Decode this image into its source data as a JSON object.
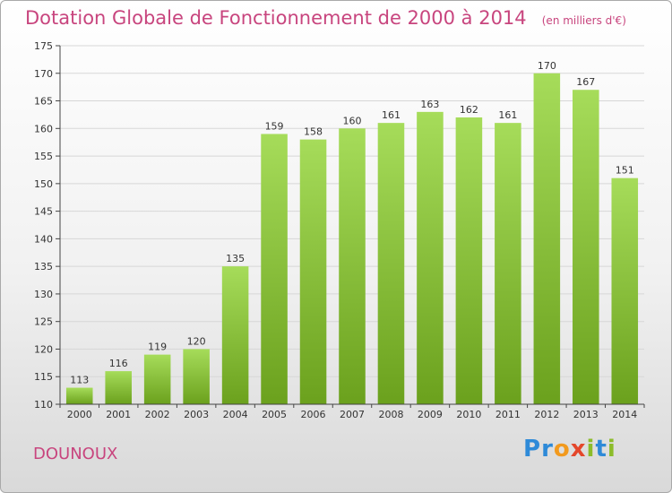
{
  "header": {
    "title": "Dotation Globale de Fonctionnement de 2000 à 2014",
    "subtitle": "(en milliers d'€)"
  },
  "commune": "DOUNOUX",
  "brand": {
    "letters": [
      "P",
      "r",
      "o",
      "x",
      "i",
      "t",
      "i"
    ],
    "colors": [
      "#2e8ad8",
      "#2e8ad8",
      "#f29a1e",
      "#e4472b",
      "#8cbc2a",
      "#2e8ad8",
      "#8cbc2a"
    ]
  },
  "chart_data": {
    "type": "bar",
    "title": "Dotation Globale de Fonctionnement de 2000 à 2014",
    "categories": [
      "2000",
      "2001",
      "2002",
      "2003",
      "2004",
      "2005",
      "2006",
      "2007",
      "2008",
      "2009",
      "2010",
      "2011",
      "2012",
      "2013",
      "2014"
    ],
    "values": [
      113,
      116,
      119,
      120,
      135,
      159,
      158,
      160,
      161,
      163,
      162,
      161,
      170,
      167,
      151
    ],
    "ylim": [
      110,
      175
    ],
    "yticks": [
      110,
      115,
      120,
      125,
      130,
      135,
      140,
      145,
      150,
      155,
      160,
      165,
      170,
      175
    ],
    "grid": true,
    "colors": {
      "bar_light": "#a6dc5a",
      "bar_dark": "#6ba11d",
      "grid": "#d7d7d7",
      "axis": "#444444"
    }
  }
}
